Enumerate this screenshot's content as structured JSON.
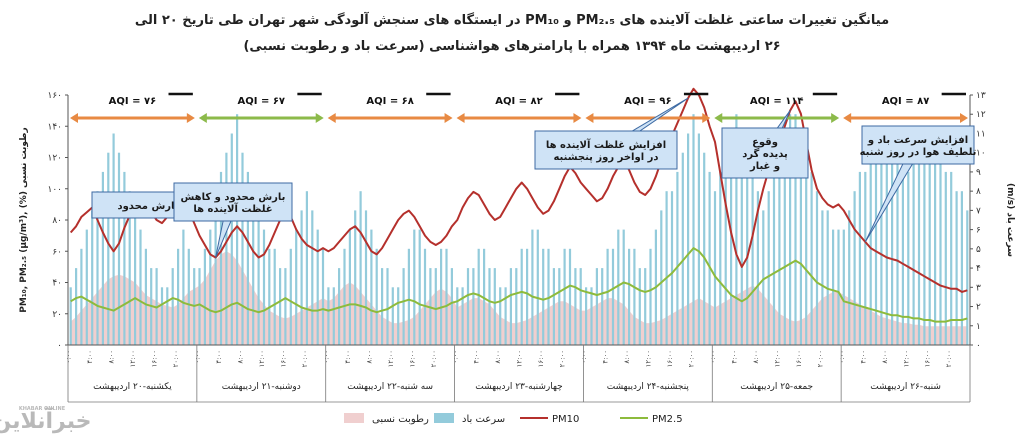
{
  "title_line1": "میانگین تغییرات ساعتی غلظت آلاینده های PM₂.₅ و PM₁₀ در ایستگاه های سنجش آلودگی شهر تهران طی تاریخ ۲۰ الی",
  "title_line2": "۲۶ اردیبهشت ماه ۱۳۹۴ همراه با پارامترهای هواشناسی (سرعت باد و رطوبت نسبی)",
  "logo_text": "خبرآنلاین",
  "logo_sub": "KHABAR ONLINE",
  "colors": {
    "pm10": "#b5302c",
    "pm25": "#8dbb3c",
    "humidity": "#f0cfcf",
    "wind": "#93cbdb",
    "aqi_orange": "#e88a43",
    "aqi_green": "#8cba4a",
    "note_fill": "#cfe3f6",
    "note_stroke": "#3d6aa3"
  },
  "chart_data": {
    "type": "line",
    "left_axis": {
      "label": "PM₁₀, PM₂.₅ (μg/m³),  (%) رطوبت نسبی",
      "min": 0,
      "max": 160,
      "ticks": [
        "۰",
        "۲۰",
        "۴۰",
        "۶۰",
        "۸۰",
        "۱۰۰",
        "۱۲۰",
        "۱۴۰",
        "۱۶۰"
      ]
    },
    "right_axis": {
      "label": "(m/s) سرعت باد",
      "min": 0,
      "max": 13,
      "ticks": [
        "۰",
        "۱",
        "۲",
        "۳",
        "۴",
        "۵",
        "۶",
        "۷",
        "۸",
        "۹",
        "۱۰",
        "۱۱",
        "۱۲",
        "۱۳"
      ]
    },
    "hour_labels": [
      "۰:۰۰",
      "۴:۰۰",
      "۸:۰۰",
      "۱۲:۰۰",
      "۱۶:۰۰",
      "۲۰:۰۰"
    ],
    "days": [
      {
        "label": "یکشنبه-۲۰ اردیبهشت",
        "aqi": "AQI = ۷۶",
        "aqi_color": "orange",
        "pm10": [
          72,
          76,
          82,
          85,
          88,
          80,
          72,
          65,
          60,
          65,
          75,
          83,
          90,
          95,
          92,
          85,
          80,
          78,
          82,
          92,
          96,
          92,
          86,
          78
        ],
        "pm25": [
          28,
          30,
          31,
          29,
          27,
          25,
          24,
          23,
          22,
          24,
          26,
          28,
          30,
          28,
          26,
          25,
          24,
          26,
          28,
          30,
          29,
          27,
          26,
          25
        ],
        "humidity": [
          15,
          18,
          22,
          26,
          30,
          34,
          38,
          42,
          44,
          45,
          44,
          42,
          40,
          36,
          32,
          30,
          28,
          26,
          25,
          24,
          26,
          30,
          34,
          36
        ],
        "wind": [
          3,
          4,
          5,
          6,
          7,
          8,
          9,
          10,
          11,
          10,
          9,
          8,
          7,
          6,
          5,
          4,
          4,
          3,
          3,
          4,
          5,
          6,
          5,
          4
        ]
      },
      {
        "label": "دوشنبه-۲۱ اردیبهشت",
        "aqi": "AQI = ۶۷",
        "aqi_color": "green",
        "pm10": [
          70,
          64,
          58,
          56,
          60,
          66,
          72,
          76,
          72,
          66,
          60,
          56,
          58,
          64,
          72,
          80,
          86,
          82,
          74,
          68,
          64,
          62,
          60,
          62
        ],
        "pm25": [
          26,
          24,
          22,
          21,
          22,
          24,
          26,
          27,
          25,
          23,
          22,
          21,
          22,
          24,
          26,
          28,
          30,
          28,
          26,
          24,
          23,
          22,
          22,
          23
        ],
        "humidity": [
          38,
          42,
          48,
          54,
          58,
          60,
          58,
          54,
          48,
          42,
          36,
          30,
          26,
          22,
          20,
          18,
          17,
          18,
          20,
          22,
          24,
          26,
          28,
          30
        ],
        "wind": [
          4,
          5,
          6,
          7,
          9,
          10,
          11,
          12,
          10,
          9,
          8,
          7,
          6,
          5,
          5,
          4,
          4,
          5,
          6,
          7,
          8,
          7,
          6,
          5
        ]
      },
      {
        "label": "سه شنبه-۲۲ اردیبهشت",
        "aqi": "AQI = ۶۸",
        "aqi_color": "orange",
        "pm10": [
          60,
          62,
          66,
          70,
          74,
          76,
          72,
          66,
          60,
          58,
          62,
          68,
          74,
          80,
          84,
          86,
          82,
          76,
          70,
          66,
          64,
          66,
          70,
          76
        ],
        "pm25": [
          22,
          23,
          24,
          25,
          26,
          26,
          25,
          24,
          22,
          21,
          22,
          23,
          25,
          27,
          28,
          29,
          28,
          26,
          25,
          24,
          23,
          24,
          25,
          27
        ],
        "humidity": [
          28,
          30,
          34,
          38,
          40,
          38,
          34,
          30,
          26,
          22,
          18,
          16,
          14,
          14,
          15,
          16,
          18,
          22,
          26,
          30,
          34,
          36,
          34,
          30
        ],
        "wind": [
          3,
          3,
          4,
          5,
          6,
          7,
          8,
          7,
          6,
          5,
          4,
          4,
          3,
          3,
          4,
          5,
          6,
          6,
          5,
          4,
          4,
          5,
          5,
          4
        ]
      },
      {
        "label": "چهارشنبه-۲۳ اردیبهشت",
        "aqi": "AQI = ۸۲",
        "aqi_color": "orange",
        "pm10": [
          80,
          88,
          94,
          98,
          96,
          90,
          84,
          80,
          82,
          88,
          94,
          100,
          104,
          100,
          94,
          88,
          84,
          86,
          92,
          100,
          108,
          114,
          110,
          104
        ],
        "pm25": [
          28,
          30,
          32,
          33,
          32,
          30,
          28,
          27,
          28,
          30,
          32,
          33,
          34,
          33,
          31,
          30,
          29,
          30,
          32,
          34,
          36,
          38,
          37,
          35
        ],
        "humidity": [
          24,
          26,
          28,
          30,
          30,
          28,
          26,
          22,
          18,
          16,
          14,
          14,
          15,
          16,
          18,
          20,
          22,
          24,
          26,
          28,
          28,
          26,
          24,
          22
        ],
        "wind": [
          3,
          3,
          4,
          4,
          5,
          5,
          4,
          4,
          3,
          3,
          4,
          4,
          5,
          5,
          6,
          6,
          5,
          5,
          4,
          4,
          5,
          5,
          4,
          4
        ]
      },
      {
        "label": "پنجشنبه-۲۴ اردیبهشت",
        "aqi": "AQI = ۹۶",
        "aqi_color": "orange",
        "pm10": [
          100,
          96,
          92,
          94,
          100,
          108,
          114,
          118,
          112,
          104,
          98,
          96,
          100,
          108,
          118,
          126,
          134,
          142,
          150,
          158,
          164,
          160,
          152,
          140
        ],
        "pm25": [
          34,
          33,
          32,
          33,
          34,
          36,
          38,
          40,
          39,
          37,
          35,
          34,
          35,
          37,
          40,
          43,
          46,
          50,
          54,
          58,
          62,
          60,
          56,
          50
        ],
        "humidity": [
          22,
          24,
          26,
          28,
          30,
          30,
          28,
          26,
          22,
          18,
          16,
          14,
          14,
          15,
          16,
          18,
          20,
          22,
          24,
          26,
          28,
          30,
          28,
          26
        ],
        "wind": [
          3,
          3,
          4,
          4,
          5,
          5,
          6,
          6,
          5,
          5,
          4,
          4,
          5,
          6,
          7,
          8,
          8,
          9,
          10,
          11,
          12,
          11,
          10,
          9
        ]
      },
      {
        "label": "جمعه-۲۵ اردیبهشت",
        "aqi": "AQI = ۱۱۴",
        "aqi_color": "green",
        "pm10": [
          130,
          110,
          90,
          72,
          58,
          50,
          56,
          70,
          86,
          100,
          112,
          120,
          130,
          140,
          150,
          156,
          148,
          130,
          112,
          100,
          94,
          90,
          88,
          90
        ],
        "pm25": [
          44,
          40,
          36,
          32,
          30,
          28,
          30,
          34,
          38,
          42,
          44,
          46,
          48,
          50,
          52,
          54,
          52,
          48,
          44,
          40,
          38,
          36,
          35,
          34
        ],
        "humidity": [
          24,
          26,
          28,
          30,
          32,
          34,
          36,
          38,
          36,
          32,
          28,
          24,
          20,
          18,
          16,
          15,
          16,
          18,
          22,
          26,
          30,
          32,
          34,
          34
        ],
        "wind": [
          8,
          9,
          10,
          11,
          12,
          11,
          10,
          9,
          8,
          7,
          8,
          9,
          10,
          11,
          12,
          12,
          11,
          10,
          9,
          8,
          7,
          7,
          6,
          6
        ]
      },
      {
        "label": "شنبه-۲۶ اردیبهشت",
        "aqi": "AQI = ۸۷",
        "aqi_color": "orange",
        "pm10": [
          86,
          80,
          74,
          70,
          66,
          62,
          60,
          58,
          56,
          55,
          54,
          52,
          50,
          48,
          46,
          44,
          42,
          40,
          38,
          37,
          36,
          36,
          34,
          35
        ],
        "pm25": [
          28,
          27,
          26,
          25,
          24,
          23,
          22,
          21,
          20,
          19,
          19,
          18,
          18,
          17,
          17,
          16,
          16,
          15,
          15,
          15,
          16,
          16,
          16,
          17
        ],
        "humidity": [
          32,
          30,
          28,
          26,
          24,
          22,
          20,
          18,
          17,
          16,
          15,
          14,
          14,
          13,
          13,
          12,
          12,
          12,
          12,
          12,
          12,
          12,
          12,
          12
        ],
        "wind": [
          6,
          7,
          8,
          9,
          9,
          10,
          10,
          11,
          11,
          10,
          10,
          9,
          9,
          10,
          10,
          11,
          11,
          10,
          10,
          9,
          9,
          8,
          8,
          7
        ]
      }
    ],
    "annotations": [
      {
        "text": "بارش محدود",
        "anchor_day": 0,
        "anchor_hour": 18
      },
      {
        "text": "بارش محدود و کاهش|غلظت آلاینده ها",
        "anchor_day": 1,
        "anchor_hour": 3
      },
      {
        "text": "افزایش غلظت آلاینده ها|در اواخر روز پنجشنبه",
        "anchor_day": 4,
        "anchor_hour": 19
      },
      {
        "text": "وقوع|پدیده گرد|و غبار",
        "anchor_day": 5,
        "anchor_hour": 14
      },
      {
        "text": "افزایش سرعت باد و|تلطیف هوا در روز شنبه",
        "anchor_day": 6,
        "anchor_hour": 4
      }
    ],
    "legend": [
      {
        "key": "pm25",
        "label": "PM2.5"
      },
      {
        "key": "pm10",
        "label": "PM10"
      },
      {
        "key": "wind",
        "label": "سرعت باد"
      },
      {
        "key": "humidity",
        "label": "رطوبت نسبی"
      }
    ]
  }
}
